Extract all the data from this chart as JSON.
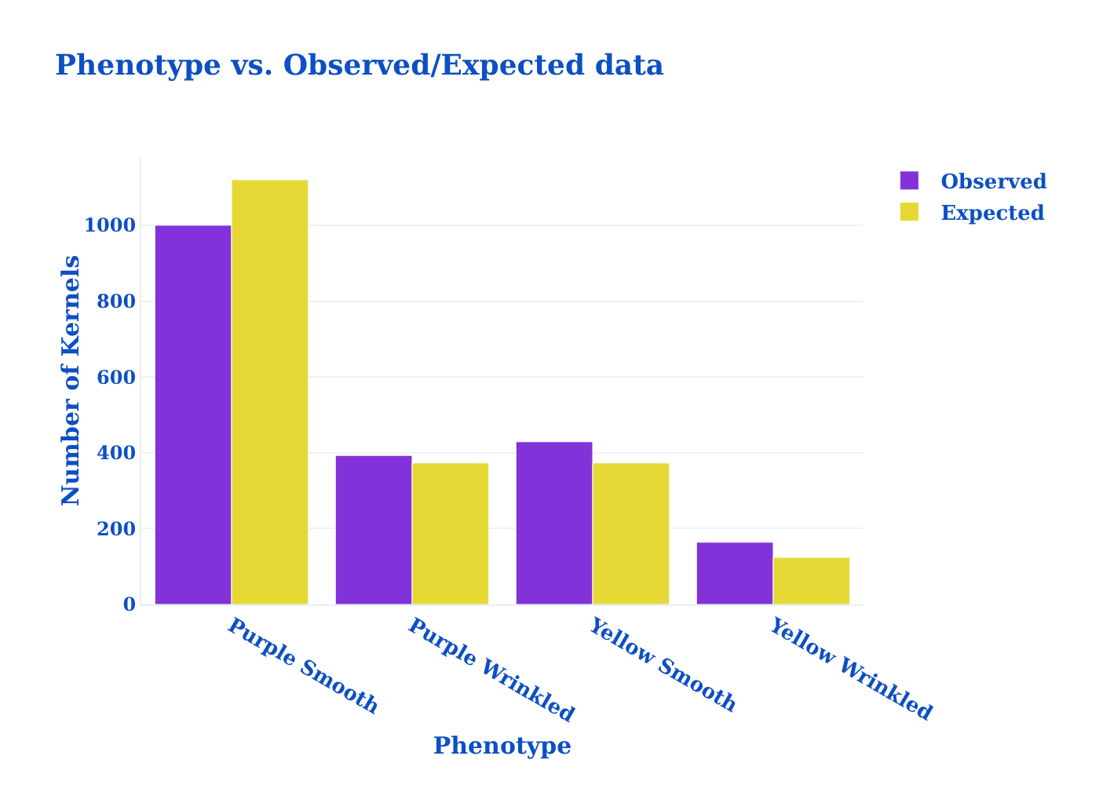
{
  "chart_data": {
    "type": "bar",
    "title": "Phenotype vs. Observed/Expected data",
    "xlabel": "Phenotype",
    "ylabel": "Number of Kernels",
    "categories": [
      "Purple Smooth",
      "Purple Wrinkled",
      "Yellow Smooth",
      "Yellow Wrinkled"
    ],
    "series": [
      {
        "name": "Observed",
        "color": "#8331d9",
        "values": [
          1000,
          393,
          429,
          164
        ]
      },
      {
        "name": "Expected",
        "color": "#e6d835",
        "values": [
          1120,
          373,
          373,
          124
        ]
      }
    ],
    "ylim": [
      0,
      1180
    ],
    "yticks": [
      0,
      200,
      400,
      600,
      800,
      1000
    ],
    "grid": "y",
    "legend": "top right"
  }
}
